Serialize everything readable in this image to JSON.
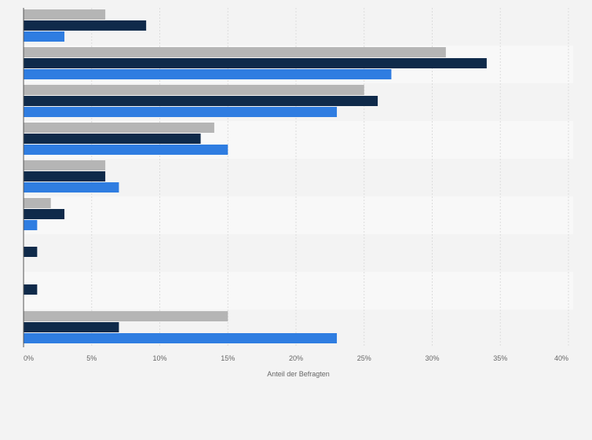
{
  "chart_data": {
    "type": "bar",
    "orientation": "horizontal",
    "categories": [
      "",
      "",
      "",
      "",
      "",
      "",
      "",
      "",
      ""
    ],
    "series": [
      {
        "values": [
          6,
          31,
          25,
          14,
          6,
          2,
          null,
          null,
          15
        ]
      },
      {
        "values": [
          9,
          34,
          26,
          13,
          6,
          3,
          1,
          1,
          7
        ]
      },
      {
        "values": [
          3,
          27,
          23,
          15,
          7,
          1,
          null,
          null,
          23
        ]
      }
    ],
    "colors": [
      "#b5b5b5",
      "#0f2a4a",
      "#2f7de1"
    ],
    "xlim": [
      0,
      40
    ],
    "x_ticks": [
      "0%",
      "5%",
      "10%",
      "15%",
      "20%",
      "25%",
      "30%",
      "35%",
      "40%"
    ],
    "xlabel": "Anteil der Befragten",
    "ylabel": "",
    "grid": true,
    "legend": "none"
  }
}
